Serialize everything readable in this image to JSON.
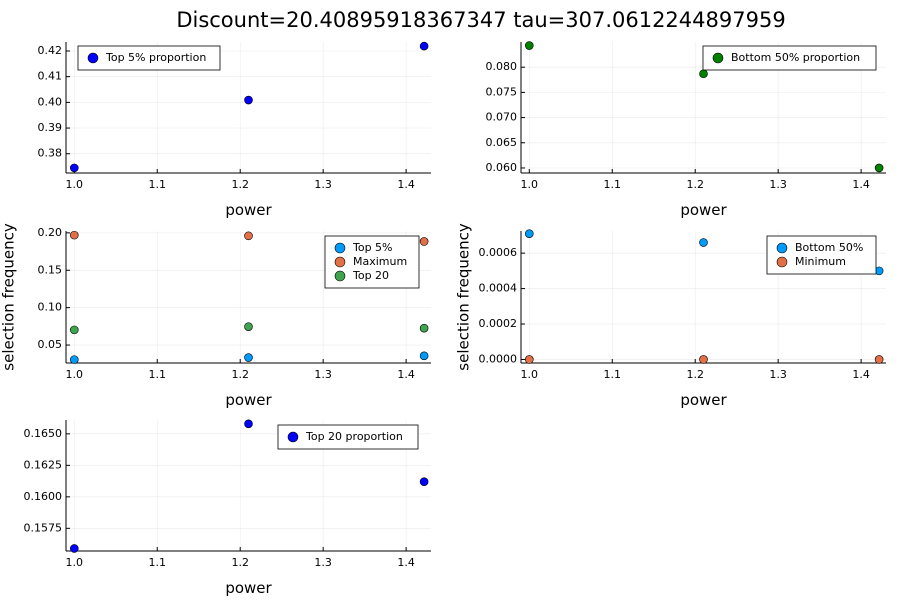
{
  "figure": {
    "title": "Discount=20.40895918367347 tau=307.0612244897959"
  },
  "chart_data": [
    {
      "type": "scatter",
      "id": "top5",
      "xlabel": "power",
      "ylabel": "",
      "xlim": [
        0.99,
        1.43
      ],
      "ylim": [
        0.3725,
        0.4235
      ],
      "xticks": [
        1.0,
        1.1,
        1.2,
        1.3,
        1.4
      ],
      "xtick_labels": [
        "1.0",
        "1.1",
        "1.2",
        "1.3",
        "1.4"
      ],
      "yticks": [
        0.38,
        0.39,
        0.4,
        0.41,
        0.42
      ],
      "ytick_labels": [
        "0.38",
        "0.39",
        "0.40",
        "0.41",
        "0.42"
      ],
      "grid": true,
      "legend": "top-left",
      "series": [
        {
          "name": "Top 5% proportion",
          "color": "#0000ff",
          "x": [
            1.0,
            1.21,
            1.4217
          ],
          "y": [
            0.3745,
            0.4009,
            0.4219
          ]
        }
      ]
    },
    {
      "type": "scatter",
      "id": "bottom50",
      "xlabel": "power",
      "ylabel": "",
      "xlim": [
        0.99,
        1.43
      ],
      "ylim": [
        0.059,
        0.085
      ],
      "xticks": [
        1.0,
        1.1,
        1.2,
        1.3,
        1.4
      ],
      "xtick_labels": [
        "1.0",
        "1.1",
        "1.2",
        "1.3",
        "1.4"
      ],
      "yticks": [
        0.06,
        0.065,
        0.07,
        0.075,
        0.08
      ],
      "ytick_labels": [
        "0.060",
        "0.065",
        "0.070",
        "0.075",
        "0.080"
      ],
      "grid": true,
      "legend": "top-right",
      "series": [
        {
          "name": "Bottom 50% proportion",
          "color": "#008000",
          "x": [
            1.0,
            1.21,
            1.4217
          ],
          "y": [
            0.0843,
            0.0787,
            0.06
          ]
        }
      ]
    },
    {
      "type": "scatter",
      "id": "selection-top",
      "xlabel": "power",
      "ylabel": "selection frequency",
      "xlim": [
        0.99,
        1.43
      ],
      "ylim": [
        0.026,
        0.2025
      ],
      "xticks": [
        1.0,
        1.1,
        1.2,
        1.3,
        1.4
      ],
      "xtick_labels": [
        "1.0",
        "1.1",
        "1.2",
        "1.3",
        "1.4"
      ],
      "yticks": [
        0.05,
        0.1,
        0.15,
        0.2
      ],
      "ytick_labels": [
        "0.05",
        "0.10",
        "0.15",
        "0.20"
      ],
      "grid": true,
      "legend": "right",
      "series": [
        {
          "name": "Top 5%",
          "color": "#009afa",
          "x": [
            1.0,
            1.21,
            1.4217
          ],
          "y": [
            0.0305,
            0.0333,
            0.0356
          ]
        },
        {
          "name": "Maximum",
          "color": "#e36f47",
          "x": [
            1.0,
            1.21,
            1.4217
          ],
          "y": [
            0.197,
            0.196,
            0.1885
          ]
        },
        {
          "name": "Top 20",
          "color": "#3ea44e",
          "x": [
            1.0,
            1.21,
            1.4217
          ],
          "y": [
            0.0703,
            0.0746,
            0.0726
          ]
        }
      ]
    },
    {
      "type": "scatter",
      "id": "selection-bottom",
      "xlabel": "power",
      "ylabel": "selection frequency",
      "xlim": [
        0.99,
        1.43
      ],
      "ylim": [
        -2e-05,
        0.000725
      ],
      "xticks": [
        1.0,
        1.1,
        1.2,
        1.3,
        1.4
      ],
      "xtick_labels": [
        "1.0",
        "1.1",
        "1.2",
        "1.3",
        "1.4"
      ],
      "yticks": [
        0.0,
        0.0002,
        0.0004,
        0.0006
      ],
      "ytick_labels": [
        "0.0000",
        "0.0002",
        "0.0004",
        "0.0006"
      ],
      "grid": true,
      "legend": "right",
      "series": [
        {
          "name": "Bottom 50%",
          "color": "#009afa",
          "x": [
            1.0,
            1.21,
            1.4217
          ],
          "y": [
            0.00071,
            0.00066,
            0.0005
          ]
        },
        {
          "name": "Minimum",
          "color": "#e36f47",
          "x": [
            1.0,
            1.21,
            1.4217
          ],
          "y": [
            0.0,
            0.0,
            0.0
          ]
        }
      ]
    },
    {
      "type": "scatter",
      "id": "top20",
      "xlabel": "power",
      "ylabel": "",
      "xlim": [
        0.99,
        1.43
      ],
      "ylim": [
        0.1557,
        0.1661
      ],
      "xticks": [
        1.0,
        1.1,
        1.2,
        1.3,
        1.4
      ],
      "xtick_labels": [
        "1.0",
        "1.1",
        "1.2",
        "1.3",
        "1.4"
      ],
      "yticks": [
        0.1575,
        0.16,
        0.1625,
        0.165
      ],
      "ytick_labels": [
        "0.1575",
        "0.1600",
        "0.1625",
        "0.1650"
      ],
      "grid": true,
      "legend": "top-right",
      "series": [
        {
          "name": "Top 20 proportion",
          "color": "#0000ff",
          "x": [
            1.0,
            1.21,
            1.4217
          ],
          "y": [
            0.1559,
            0.1658,
            0.1612
          ]
        }
      ]
    }
  ]
}
